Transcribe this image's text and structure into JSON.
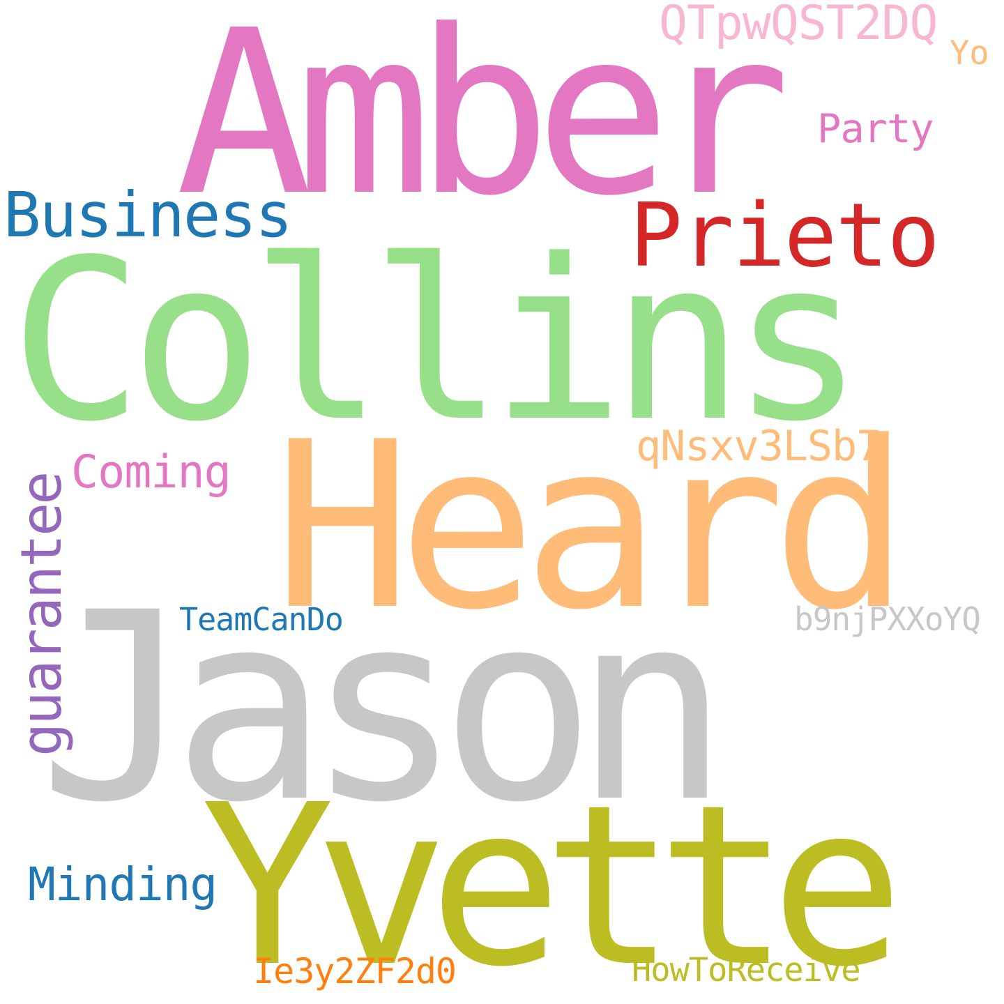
{
  "words": {
    "amber": {
      "text": "Amber",
      "color": "#e377c2"
    },
    "qtpwqst2dq": {
      "text": "QTpwQST2DQ",
      "color": "#f7b6d2"
    },
    "yo": {
      "text": "Yo",
      "color": "#ffbb78"
    },
    "party": {
      "text": "Party",
      "color": "#e377c2"
    },
    "business": {
      "text": "Business",
      "color": "#1f77b4"
    },
    "prieto": {
      "text": "Prieto",
      "color": "#d62728"
    },
    "collins": {
      "text": "Collins",
      "color": "#98df8a"
    },
    "qnsxv3lsb7": {
      "text": "qNsxv3LSb7",
      "color": "#ffbb78"
    },
    "heard": {
      "text": "Heard",
      "color": "#ffbb78"
    },
    "coming": {
      "text": "Coming",
      "color": "#e377c2"
    },
    "guarantee": {
      "text": "guarantee",
      "color": "#9467bd"
    },
    "teamcando": {
      "text": "TeamCanDo",
      "color": "#1f77b4"
    },
    "b9njpxxoyq": {
      "text": "b9njPXXoYQ",
      "color": "#c7c7c7"
    },
    "jason": {
      "text": "Jason",
      "color": "#c7c7c7"
    },
    "yvette": {
      "text": "Yvette",
      "color": "#bcbd22"
    },
    "minding": {
      "text": "Minding",
      "color": "#1f77b4"
    },
    "ie3y2zf2d0": {
      "text": "Ie3y2ZF2d0",
      "color": "#ff7f0e"
    },
    "howtoreceive": {
      "text": "HowToReceive",
      "color": "#bcbd22"
    }
  }
}
